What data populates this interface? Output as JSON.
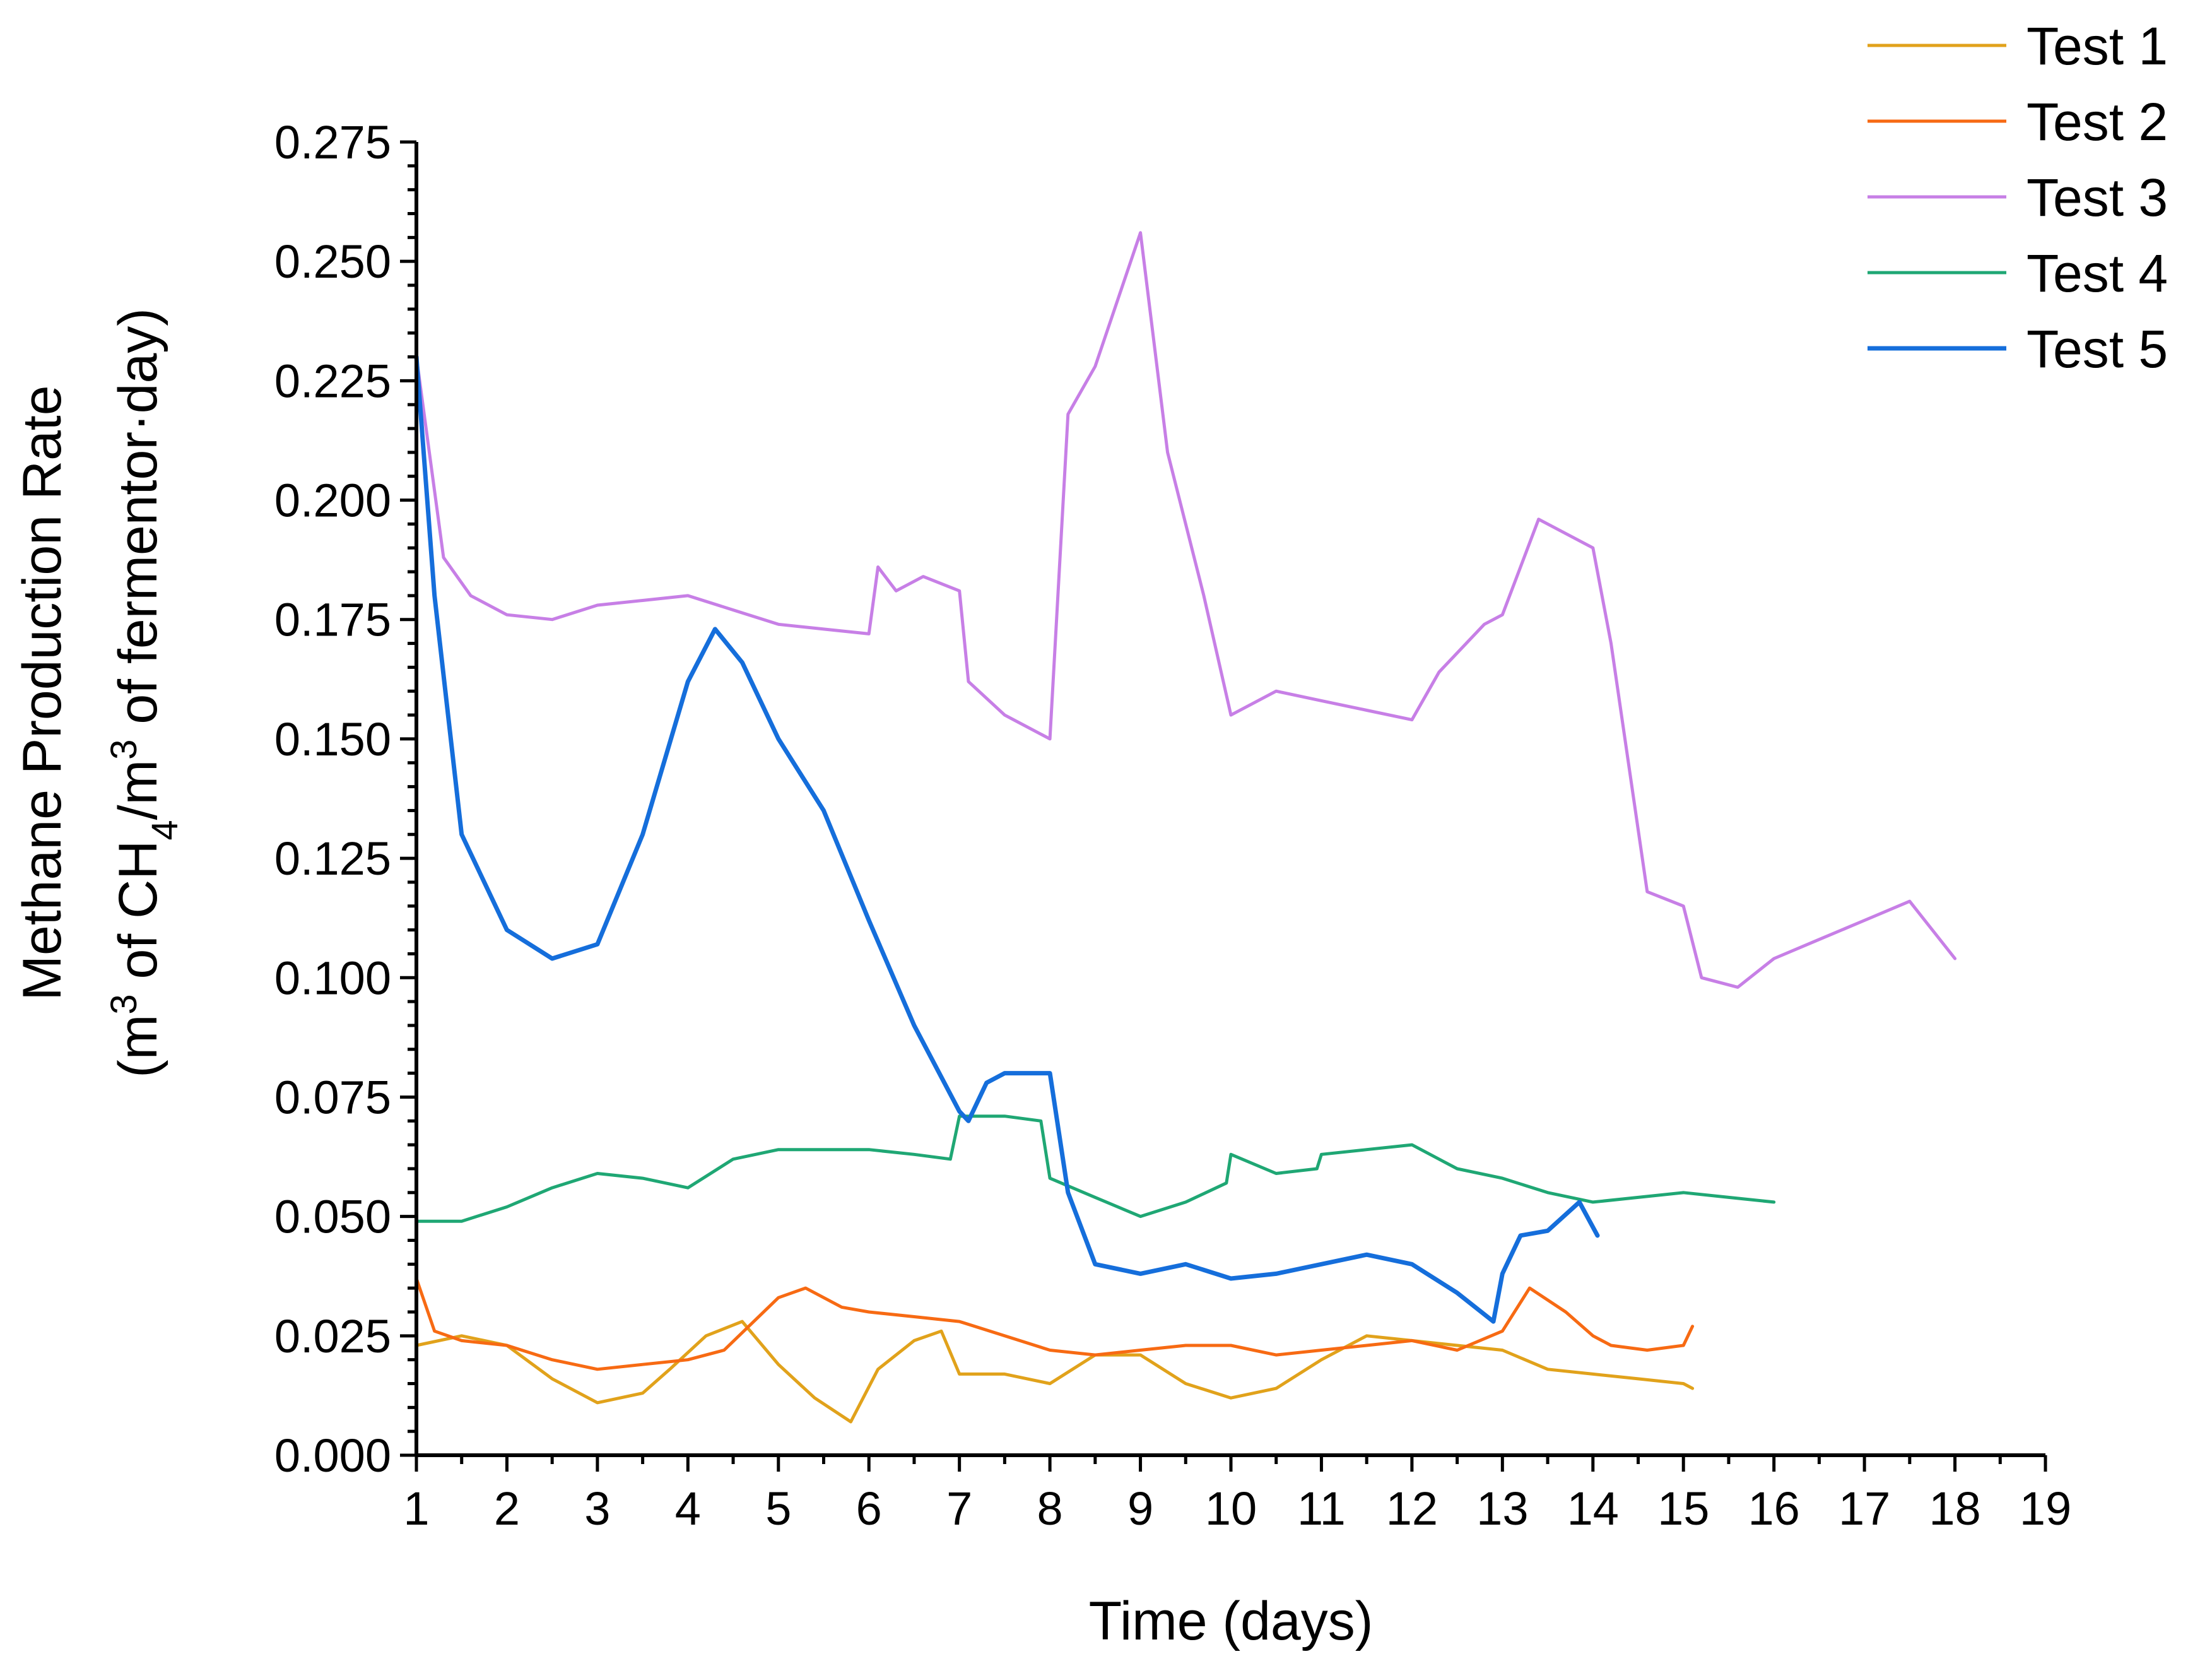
{
  "chart_data": {
    "type": "line",
    "title": "",
    "xlabel": "Time (days)",
    "ylabel": {
      "line1": "Methane Production Rate",
      "line2_prefix": "(m",
      "line2_sup1": "3",
      "line2_mid1": " of CH",
      "line2_sub": "4",
      "line2_mid2": "/m",
      "line2_sup2": "3",
      "line2_suffix": " of fermentor·day)"
    },
    "xlim": [
      1,
      19
    ],
    "ylim": [
      0,
      0.275
    ],
    "xticks": [
      "1",
      "2",
      "3",
      "4",
      "5",
      "6",
      "7",
      "8",
      "9",
      "10",
      "11",
      "12",
      "13",
      "14",
      "15",
      "16",
      "17",
      "18",
      "19"
    ],
    "yticks": [
      "0.000",
      "0.025",
      "0.050",
      "0.075",
      "0.100",
      "0.125",
      "0.150",
      "0.175",
      "0.200",
      "0.225",
      "0.250",
      "0.275"
    ],
    "legend_position": "top-right",
    "series": [
      {
        "name": "Test 1",
        "color": "#E1A21B",
        "x": [
          1,
          1.5,
          2,
          2.5,
          3,
          3.5,
          3.8,
          4.2,
          4.6,
          5,
          5.4,
          5.8,
          6.1,
          6.5,
          6.8,
          7,
          7.5,
          8,
          8.5,
          9,
          9.5,
          10,
          10.5,
          11,
          11.5,
          12,
          12.5,
          13,
          13.5,
          14,
          14.5,
          15,
          15.1
        ],
        "values": [
          0.023,
          0.025,
          0.023,
          0.016,
          0.011,
          0.013,
          0.018,
          0.025,
          0.028,
          0.019,
          0.012,
          0.007,
          0.018,
          0.024,
          0.026,
          0.017,
          0.017,
          0.015,
          0.021,
          0.021,
          0.015,
          0.012,
          0.014,
          0.02,
          0.025,
          0.024,
          0.023,
          0.022,
          0.018,
          0.017,
          0.016,
          0.015,
          0.014
        ]
      },
      {
        "name": "Test 2",
        "color": "#F76A13",
        "x": [
          1,
          1.2,
          1.5,
          2,
          2.5,
          3,
          3.5,
          4,
          4.4,
          5,
          5.3,
          5.7,
          6,
          6.5,
          7,
          7.5,
          8,
          8.5,
          9,
          9.5,
          10,
          10.5,
          11,
          11.5,
          12,
          12.5,
          13,
          13.3,
          13.7,
          14,
          14.2,
          14.6,
          15,
          15.1
        ],
        "values": [
          0.037,
          0.026,
          0.024,
          0.023,
          0.02,
          0.018,
          0.019,
          0.02,
          0.022,
          0.033,
          0.035,
          0.031,
          0.03,
          0.029,
          0.028,
          0.025,
          0.022,
          0.021,
          0.022,
          0.023,
          0.023,
          0.021,
          0.022,
          0.023,
          0.024,
          0.022,
          0.026,
          0.035,
          0.03,
          0.025,
          0.023,
          0.022,
          0.023,
          0.027
        ]
      },
      {
        "name": "Test 3",
        "color": "#C77FE6",
        "x": [
          1,
          1.3,
          1.6,
          2,
          2.5,
          3,
          3.5,
          4,
          4.5,
          5,
          5.5,
          6,
          6.1,
          6.3,
          6.6,
          7,
          7.1,
          7.5,
          8,
          8.2,
          8.5,
          9,
          9.3,
          9.7,
          10,
          10.5,
          11,
          11.5,
          12,
          12.3,
          12.8,
          13,
          13.4,
          14,
          14.2,
          14.6,
          15,
          15.2,
          15.6,
          16,
          16.5,
          17,
          17.5,
          18
        ],
        "values": [
          0.23,
          0.188,
          0.18,
          0.176,
          0.175,
          0.178,
          0.179,
          0.18,
          0.177,
          0.174,
          0.173,
          0.172,
          0.186,
          0.181,
          0.184,
          0.181,
          0.162,
          0.155,
          0.15,
          0.218,
          0.228,
          0.256,
          0.21,
          0.18,
          0.155,
          0.16,
          0.158,
          0.156,
          0.154,
          0.164,
          0.174,
          0.176,
          0.196,
          0.19,
          0.17,
          0.118,
          0.115,
          0.1,
          0.098,
          0.104,
          0.108,
          0.112,
          0.116,
          0.104
        ]
      },
      {
        "name": "Test 4",
        "color": "#1FA774",
        "x": [
          1,
          1.5,
          2,
          2.5,
          3,
          3.5,
          4,
          4.5,
          5,
          5.5,
          6,
          6.5,
          6.9,
          7,
          7.5,
          7.9,
          8,
          8.5,
          9,
          9.5,
          9.95,
          10,
          10.5,
          10.95,
          11,
          11.5,
          12,
          12.5,
          13,
          13.5,
          14,
          14.5,
          15,
          15.5,
          16
        ],
        "values": [
          0.049,
          0.049,
          0.052,
          0.056,
          0.059,
          0.058,
          0.056,
          0.062,
          0.064,
          0.064,
          0.064,
          0.063,
          0.062,
          0.071,
          0.071,
          0.07,
          0.058,
          0.054,
          0.05,
          0.053,
          0.057,
          0.063,
          0.059,
          0.06,
          0.063,
          0.064,
          0.065,
          0.06,
          0.058,
          0.055,
          0.053,
          0.054,
          0.055,
          0.054,
          0.053
        ]
      },
      {
        "name": "Test 5",
        "color": "#156EDB",
        "x": [
          1,
          1.2,
          1.5,
          2,
          2.5,
          3,
          3.5,
          4,
          4.3,
          4.6,
          5,
          5.5,
          6,
          6.5,
          7,
          7.1,
          7.3,
          7.5,
          8,
          8.2,
          8.5,
          9,
          9.5,
          10,
          10.5,
          11,
          11.5,
          12,
          12.5,
          12.9,
          13,
          13.2,
          13.5,
          13.85,
          14.05
        ],
        "values": [
          0.23,
          0.18,
          0.13,
          0.11,
          0.104,
          0.107,
          0.13,
          0.162,
          0.173,
          0.166,
          0.15,
          0.135,
          0.112,
          0.09,
          0.072,
          0.07,
          0.078,
          0.08,
          0.08,
          0.055,
          0.04,
          0.038,
          0.04,
          0.037,
          0.038,
          0.04,
          0.042,
          0.04,
          0.034,
          0.028,
          0.038,
          0.046,
          0.047,
          0.053,
          0.046
        ]
      }
    ]
  }
}
